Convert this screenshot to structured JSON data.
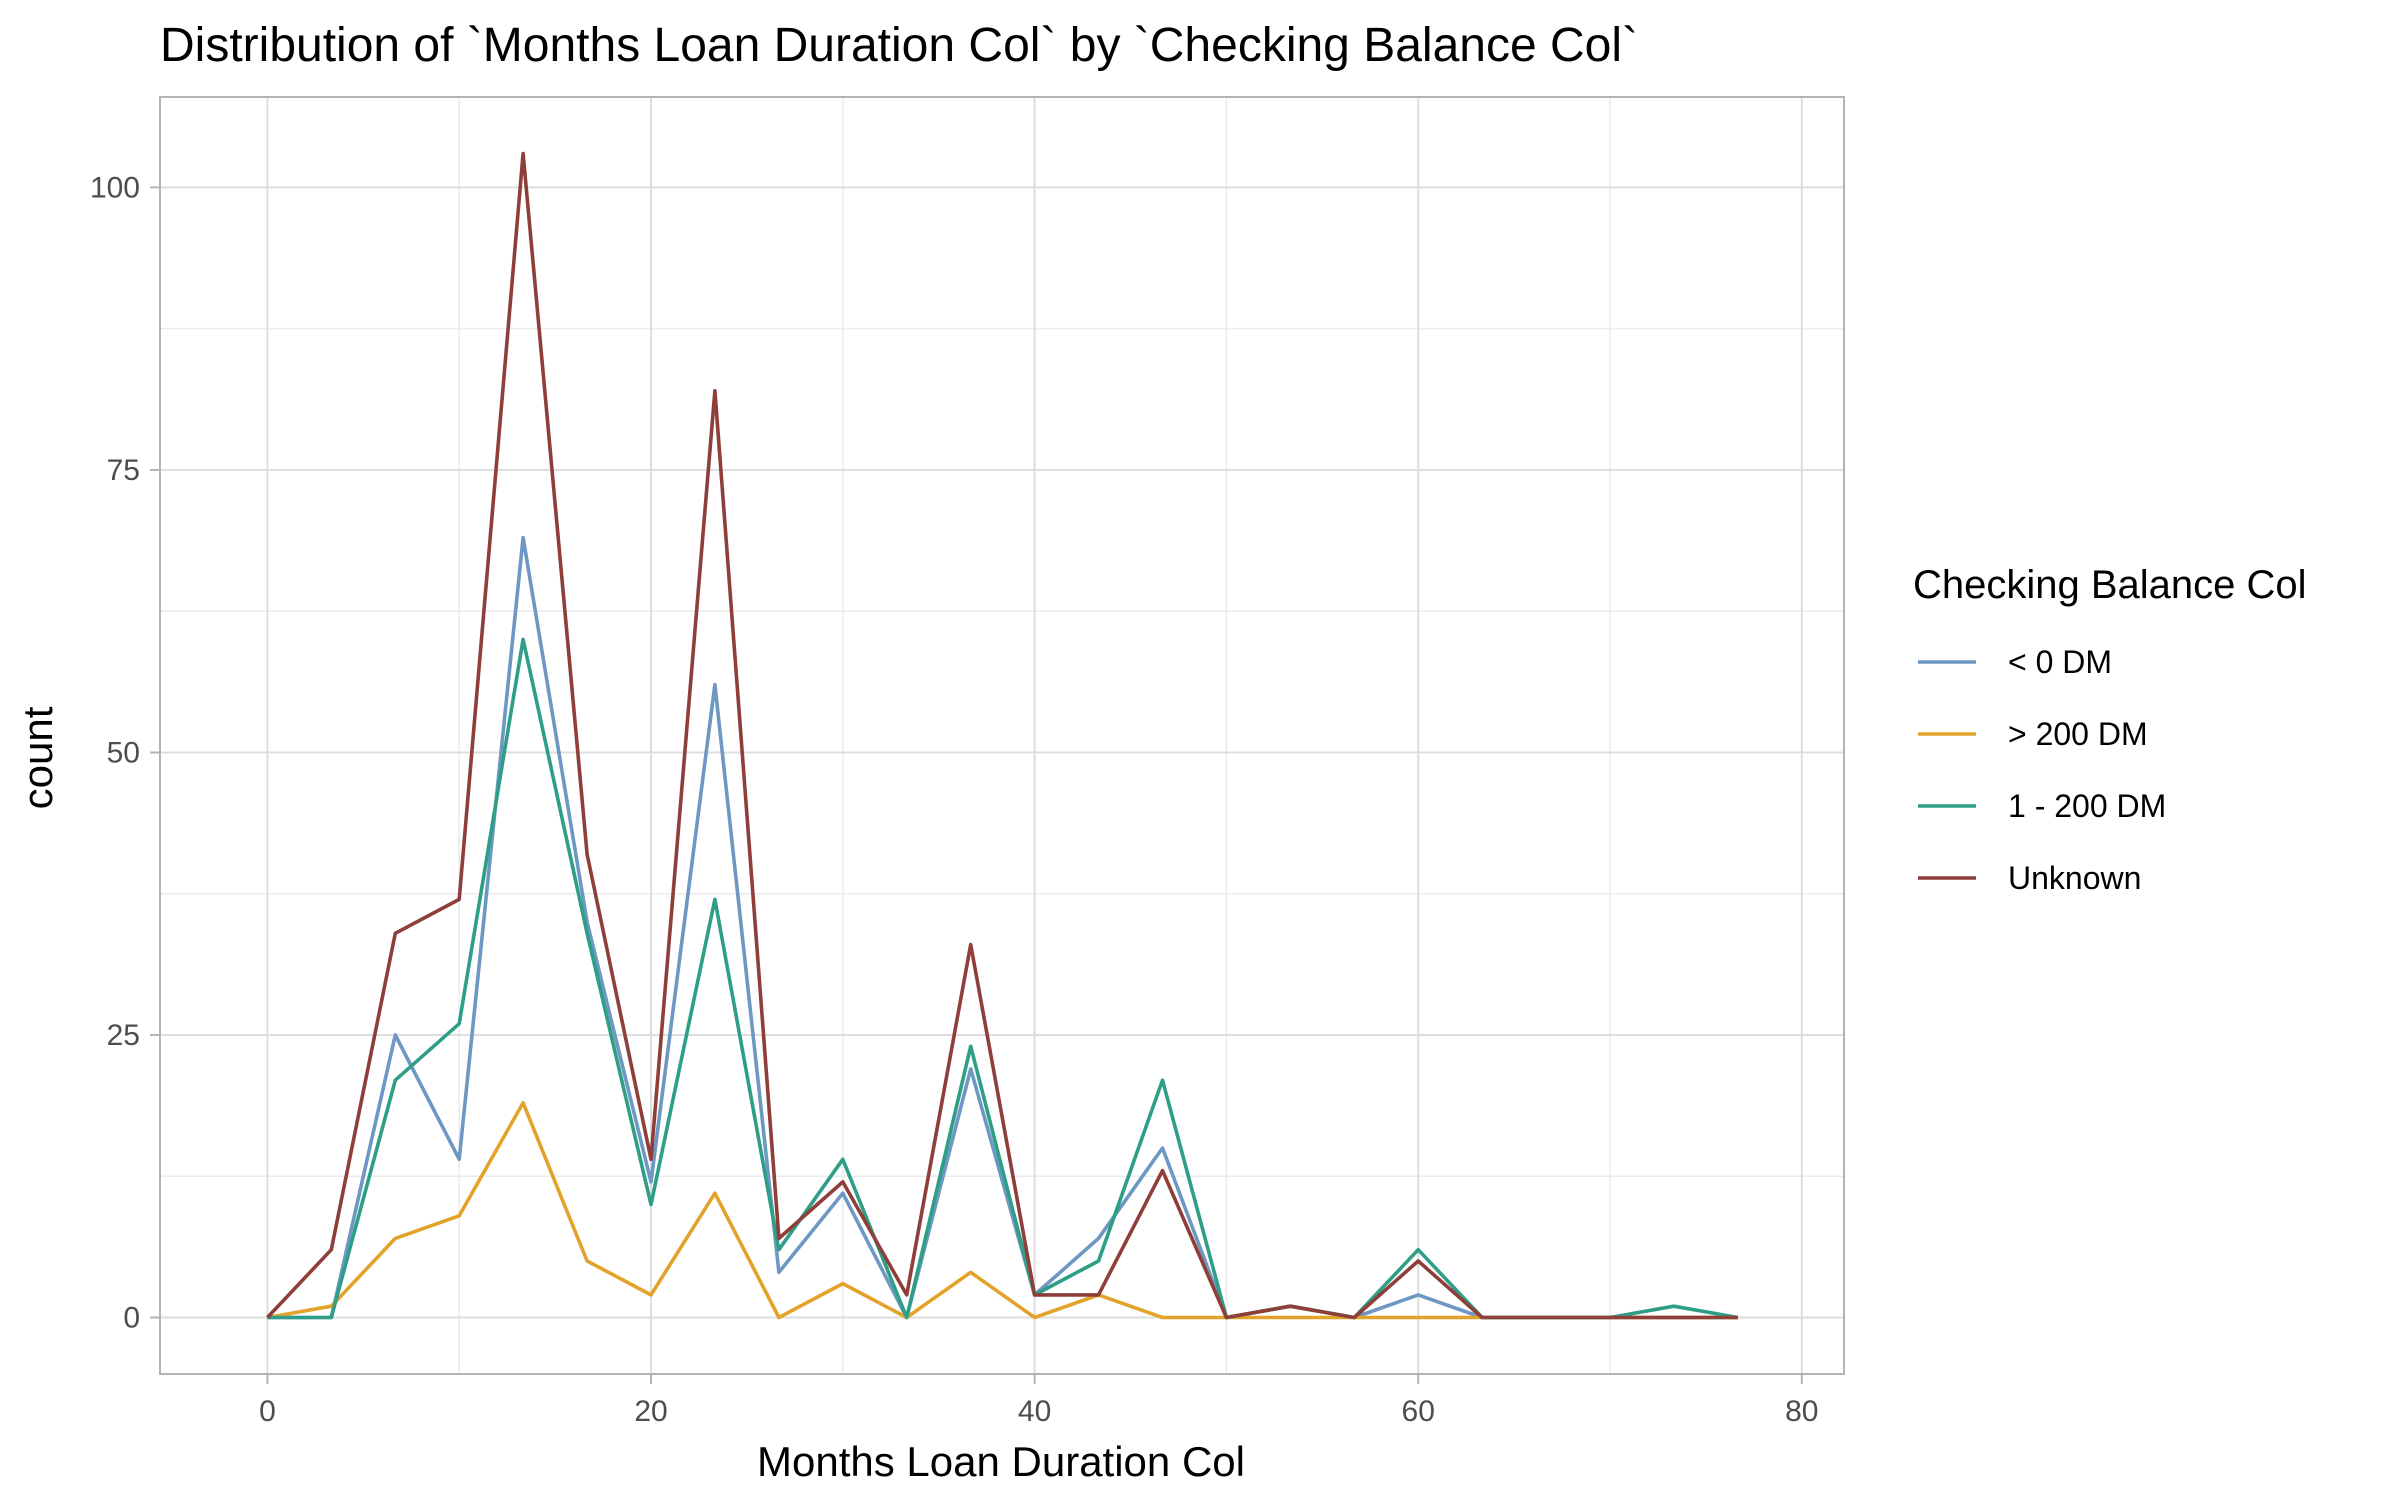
{
  "chart_data": {
    "type": "line",
    "title": "Distribution of `Months Loan Duration Col` by `Checking Balance Col`",
    "xlabel": "Months Loan Duration Col",
    "ylabel": "count",
    "xlim": [
      -5.6,
      82.2
    ],
    "ylim": [
      -5,
      108
    ],
    "xticks": [
      0,
      20,
      40,
      60,
      80
    ],
    "yticks": [
      0,
      25,
      50,
      75,
      100
    ],
    "x_minor": [
      10,
      30,
      50,
      70
    ],
    "y_minor": [
      12.5,
      37.5,
      62.5,
      87.5
    ],
    "grid": true,
    "legend_title": "Checking Balance Col",
    "legend_position": "right",
    "x": [
      0,
      3.33,
      6.67,
      10,
      13.33,
      16.67,
      20,
      23.33,
      26.67,
      30,
      33.33,
      36.67,
      40,
      43.33,
      46.67,
      50,
      53.33,
      56.67,
      60,
      63.33,
      66.67,
      70,
      73.33,
      76.67
    ],
    "series": [
      {
        "name": "< 0 DM",
        "color": "#6d98c3",
        "values": [
          0,
          0,
          25,
          14,
          69,
          35,
          12,
          56,
          4,
          11,
          0,
          22,
          2,
          7,
          15,
          0,
          1,
          0,
          2,
          0,
          0,
          0,
          0,
          0
        ]
      },
      {
        "name": "> 200 DM",
        "color": "#e3a32b",
        "values": [
          0,
          1,
          7,
          9,
          19,
          5,
          2,
          11,
          0,
          3,
          0,
          4,
          0,
          2,
          0,
          0,
          0,
          0,
          0,
          0,
          0,
          0,
          0,
          0
        ]
      },
      {
        "name": "1 - 200 DM",
        "color": "#2e9e86",
        "values": [
          0,
          0,
          21,
          26,
          60,
          34,
          10,
          37,
          6,
          14,
          0,
          24,
          2,
          5,
          21,
          0,
          1,
          0,
          6,
          0,
          0,
          0,
          1,
          0
        ]
      },
      {
        "name": "Unknown",
        "color": "#8f3f3a",
        "values": [
          0,
          6,
          34,
          37,
          103,
          41,
          14,
          82,
          7,
          12,
          2,
          33,
          2,
          2,
          13,
          0,
          1,
          0,
          5,
          0,
          0,
          0,
          0,
          0
        ]
      }
    ]
  }
}
